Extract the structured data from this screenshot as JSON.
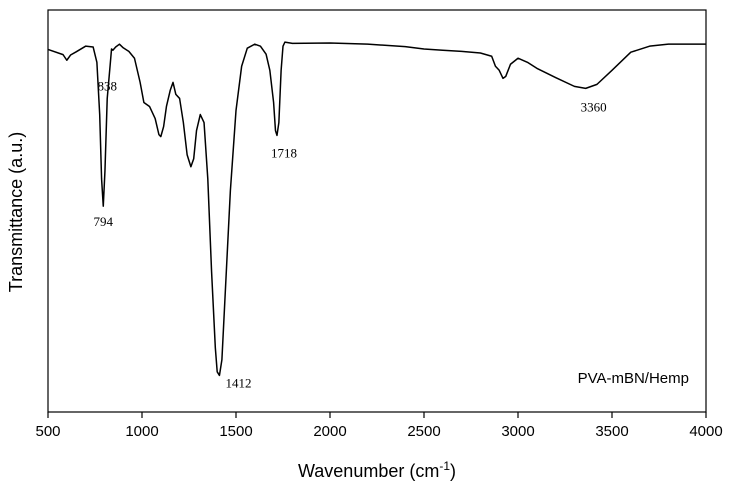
{
  "chart_data": {
    "type": "line",
    "xlabel": "Wavenumber (cm",
    "xlabel_sup": "-1",
    "xlabel_end": ")",
    "ylabel": "Transmittance (a.u.)",
    "xlim": [
      500,
      4000
    ],
    "ylim": [
      0,
      100
    ],
    "y_ticks_shown": false,
    "grid": false,
    "x_ticks": [
      "500",
      "1000",
      "1500",
      "2000",
      "2500",
      "3000",
      "3500",
      "4000"
    ],
    "legend": {
      "text": "PVA-mBN/Hemp",
      "placement": "bottom-right"
    },
    "annotations": [
      {
        "label": "794",
        "x": 794,
        "y": 51.2
      },
      {
        "label": "838",
        "x": 838,
        "y": 85.4
      },
      {
        "label": "1412",
        "x": 1412,
        "y": 9.1
      },
      {
        "label": "1718",
        "x": 1718,
        "y": 68.8
      },
      {
        "label": "3360",
        "x": 3360,
        "y": 80.5
      }
    ],
    "series": [
      {
        "x": [
          500,
          580,
          600,
          620,
          650,
          700,
          740,
          760,
          775,
          785,
          794,
          803,
          815,
          830,
          838,
          845,
          860,
          880,
          900,
          930,
          960,
          990,
          1010,
          1040,
          1070,
          1090,
          1100,
          1115,
          1130,
          1150,
          1165,
          1180,
          1200,
          1220,
          1240,
          1260,
          1275,
          1290,
          1310,
          1330,
          1350,
          1370,
          1390,
          1400,
          1412,
          1425,
          1440,
          1470,
          1500,
          1530,
          1560,
          1600,
          1630,
          1660,
          1680,
          1700,
          1710,
          1718,
          1728,
          1740,
          1750,
          1760,
          1800,
          2000,
          2200,
          2400,
          2500,
          2600,
          2700,
          2800,
          2860,
          2880,
          2900,
          2920,
          2935,
          2960,
          3000,
          3050,
          3100,
          3200,
          3300,
          3360,
          3420,
          3500,
          3600,
          3700,
          3800,
          3900,
          4000
        ],
        "y": [
          90.2,
          88.9,
          87.5,
          88.8,
          89.6,
          91.0,
          90.8,
          87.0,
          74.0,
          58.0,
          51.2,
          60.0,
          78.0,
          86.0,
          90.3,
          90.0,
          90.8,
          91.5,
          90.6,
          89.7,
          88.0,
          82.0,
          77.0,
          76.0,
          73.0,
          69.0,
          68.5,
          71.0,
          76.0,
          80.0,
          82.0,
          79.0,
          78.0,
          72.0,
          64.0,
          61.0,
          63.0,
          70.0,
          74.0,
          72.0,
          58.0,
          35.0,
          16.0,
          10.0,
          9.1,
          13.0,
          27.0,
          55.0,
          75.0,
          86.0,
          90.5,
          91.5,
          91.0,
          89.0,
          85.0,
          77.0,
          70.0,
          68.8,
          72.0,
          85.0,
          91.0,
          92.0,
          91.7,
          91.8,
          91.5,
          90.9,
          90.3,
          90.0,
          89.7,
          89.3,
          88.5,
          86.0,
          85.0,
          83.0,
          83.5,
          86.5,
          88.0,
          87.0,
          85.5,
          83.2,
          81.0,
          80.5,
          81.5,
          85.0,
          89.5,
          91.0,
          91.5,
          91.5,
          91.5
        ]
      }
    ]
  }
}
